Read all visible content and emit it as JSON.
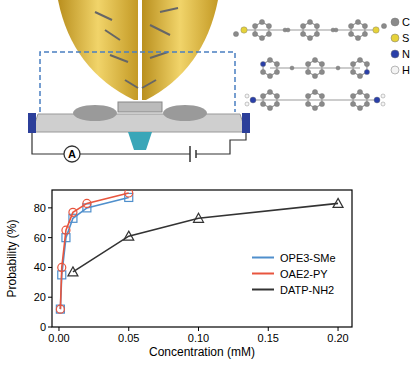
{
  "chart_data": {
    "type": "line",
    "x_label": "Concentration (mM)",
    "y_label": "Probability (%)",
    "xlim": [
      -0.005,
      0.21
    ],
    "ylim": [
      0,
      92
    ],
    "xticks": [
      {
        "value": 0,
        "label": "0.00"
      },
      {
        "value": 0.05,
        "label": "0.05"
      },
      {
        "value": 0.1,
        "label": "0.10"
      },
      {
        "value": 0.15,
        "label": "0.15"
      },
      {
        "value": 0.2,
        "label": "0.20"
      }
    ],
    "yticks": [
      0,
      20,
      40,
      60,
      80
    ],
    "legend": "right",
    "series": [
      {
        "name": "OPE3-SMe",
        "color": "#4f8fcc",
        "marker": "square",
        "line_style": "solid",
        "x": [
          0.001,
          0.002,
          0.005,
          0.01,
          0.02,
          0.05
        ],
        "values": [
          12,
          35,
          60,
          73,
          80,
          87
        ]
      },
      {
        "name": "OAE2-PY",
        "color": "#e8553e",
        "marker": "circle",
        "line_style": "solid",
        "x": [
          0.001,
          0.002,
          0.005,
          0.01,
          0.02,
          0.05
        ],
        "values": [
          12,
          40,
          65,
          77,
          83,
          90
        ]
      },
      {
        "name": "DATP-NH2",
        "color": "#333333",
        "marker": "triangle",
        "line_style": "solid",
        "x": [
          0.01,
          0.05,
          0.1,
          0.2
        ],
        "values": [
          37,
          61,
          73,
          83
        ]
      }
    ]
  },
  "diagram": {
    "ammeter": "A",
    "atom_legend": [
      {
        "label": "C",
        "color": "#8a8a8a"
      },
      {
        "label": "S",
        "color": "#e6d23a"
      },
      {
        "label": "N",
        "color": "#2a3fa8"
      },
      {
        "label": "H",
        "color": "#f4f4f4"
      }
    ]
  }
}
